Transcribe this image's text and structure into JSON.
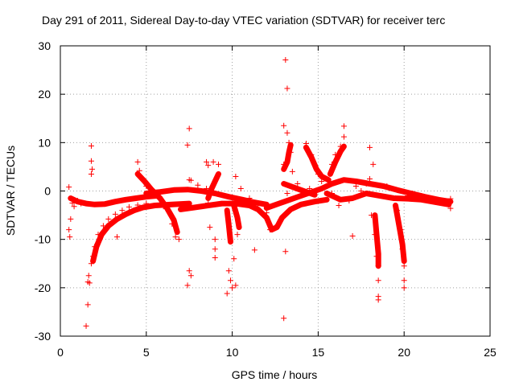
{
  "chart_data": {
    "type": "scatter",
    "title": "Day 291 of 2011, Sidereal Day-to-day VTEC variation (SDTVAR) for receiver terc",
    "xlabel": "GPS time / hours",
    "ylabel": "SDTVAR / TECUs",
    "xlim": [
      0,
      25
    ],
    "ylim": [
      -30,
      30
    ],
    "xticks": [
      "0",
      "5",
      "10",
      "15",
      "20",
      "25"
    ],
    "yticks": [
      "-30",
      "-20",
      "-10",
      "0",
      "10",
      "20",
      "30"
    ],
    "grid": true,
    "marker": "+",
    "series_color": "#ff0000",
    "series": [
      {
        "name": "SDTVAR",
        "points": [
          [
            0.5,
            0.8
          ],
          [
            0.6,
            -5.8
          ],
          [
            0.5,
            -8.0
          ],
          [
            0.55,
            -9.5
          ],
          [
            0.7,
            -2.5
          ],
          [
            0.8,
            -3.2
          ],
          [
            1.0,
            -2.0
          ],
          [
            1.2,
            -2.6
          ],
          [
            1.5,
            -27.9
          ],
          [
            1.6,
            -23.5
          ],
          [
            1.6,
            -18.8
          ],
          [
            1.65,
            -17.5
          ],
          [
            1.7,
            -19.0
          ],
          [
            1.8,
            9.3
          ],
          [
            1.8,
            6.2
          ],
          [
            1.85,
            4.5
          ],
          [
            1.8,
            3.5
          ],
          [
            1.8,
            -15.0
          ],
          [
            1.9,
            -13.5
          ],
          [
            2.0,
            -11.5
          ],
          [
            2.2,
            -9.0
          ],
          [
            2.5,
            -7.2
          ],
          [
            2.8,
            -5.8
          ],
          [
            3.2,
            -4.8
          ],
          [
            3.6,
            -4.0
          ],
          [
            4.0,
            -3.3
          ],
          [
            4.5,
            -2.9
          ],
          [
            5.0,
            -2.6
          ],
          [
            3.3,
            -9.5
          ],
          [
            4.5,
            6.0
          ],
          [
            4.6,
            4.2
          ],
          [
            4.8,
            2.5
          ],
          [
            5.0,
            1.0
          ],
          [
            5.5,
            -0.8
          ],
          [
            6.0,
            -3.2
          ],
          [
            6.5,
            -6.8
          ],
          [
            6.7,
            -9.5
          ],
          [
            6.9,
            -10.0
          ],
          [
            7.5,
            2.3
          ],
          [
            7.4,
            9.5
          ],
          [
            7.5,
            12.9
          ],
          [
            7.6,
            2.2
          ],
          [
            7.5,
            -16.5
          ],
          [
            7.6,
            -17.5
          ],
          [
            7.4,
            -19.5
          ],
          [
            8.0,
            1.2
          ],
          [
            8.5,
            6.0
          ],
          [
            8.6,
            5.3
          ],
          [
            8.9,
            6.0
          ],
          [
            9.2,
            5.5
          ],
          [
            8.7,
            -7.5
          ],
          [
            9.0,
            -10.0
          ],
          [
            9.0,
            -12.0
          ],
          [
            9.0,
            -13.8
          ],
          [
            8.5,
            0.5
          ],
          [
            8.6,
            -2.5
          ],
          [
            9.8,
            -16.5
          ],
          [
            9.9,
            -18.5
          ],
          [
            9.7,
            -21.2
          ],
          [
            10.0,
            -20.0
          ],
          [
            10.2,
            -19.5
          ],
          [
            10.1,
            -14.0
          ],
          [
            10.3,
            -9.0
          ],
          [
            10.2,
            3.0
          ],
          [
            10.5,
            0.5
          ],
          [
            11.0,
            -1.5
          ],
          [
            11.5,
            -2.8
          ],
          [
            11.3,
            -12.2
          ],
          [
            12.0,
            -4.5
          ],
          [
            12.2,
            -8.0
          ],
          [
            12.5,
            -7.5
          ],
          [
            12.8,
            -6.0
          ],
          [
            13.0,
            -26.3
          ],
          [
            13.1,
            -12.5
          ],
          [
            13.1,
            27.1
          ],
          [
            13.2,
            21.2
          ],
          [
            13.0,
            13.5
          ],
          [
            13.2,
            12.0
          ],
          [
            13.3,
            10.0
          ],
          [
            13.4,
            8.0
          ],
          [
            13.0,
            5.5
          ],
          [
            13.5,
            4.0
          ],
          [
            13.2,
            -0.5
          ],
          [
            13.8,
            1.5
          ],
          [
            14.0,
            -1.0
          ],
          [
            14.5,
            0.5
          ],
          [
            14.3,
            9.8
          ],
          [
            14.6,
            7.5
          ],
          [
            14.8,
            5.5
          ],
          [
            15.0,
            3.5
          ],
          [
            15.2,
            2.0
          ],
          [
            15.5,
            2.5
          ],
          [
            15.8,
            5.5
          ],
          [
            16.0,
            7.5
          ],
          [
            16.3,
            9.2
          ],
          [
            16.5,
            13.4
          ],
          [
            16.5,
            11.2
          ],
          [
            15.8,
            -0.5
          ],
          [
            16.2,
            -3.0
          ],
          [
            16.8,
            -2.0
          ],
          [
            17.0,
            -9.3
          ],
          [
            17.2,
            1.0
          ],
          [
            17.5,
            0.0
          ],
          [
            17.8,
            1.5
          ],
          [
            18.0,
            2.5
          ],
          [
            18.0,
            9.0
          ],
          [
            18.2,
            5.5
          ],
          [
            18.1,
            -5.0
          ],
          [
            18.3,
            -9.0
          ],
          [
            18.4,
            -13.5
          ],
          [
            18.5,
            -15.5
          ],
          [
            18.5,
            -18.5
          ],
          [
            18.5,
            -21.8
          ],
          [
            18.5,
            -22.5
          ],
          [
            19.0,
            1.0
          ],
          [
            19.5,
            -1.5
          ],
          [
            19.6,
            -4.0
          ],
          [
            19.8,
            -8.0
          ],
          [
            19.9,
            -12.0
          ],
          [
            20.0,
            -15.5
          ],
          [
            20.0,
            -18.5
          ],
          [
            20.0,
            -20.0
          ],
          [
            20.2,
            -1.0
          ],
          [
            20.5,
            -0.5
          ],
          [
            21.0,
            -1.0
          ],
          [
            21.5,
            -1.5
          ],
          [
            22.0,
            -1.8
          ],
          [
            22.5,
            -2.3
          ],
          [
            22.7,
            -1.6
          ],
          [
            22.7,
            -3.6
          ],
          [
            22.6,
            -2.8
          ]
        ]
      }
    ]
  }
}
